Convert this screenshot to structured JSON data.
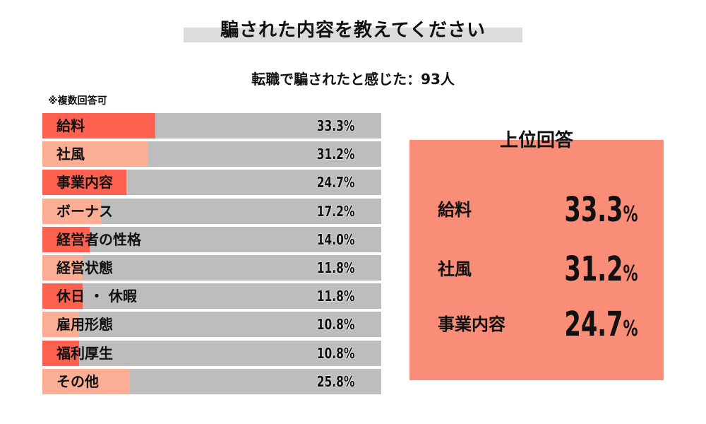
{
  "header": {
    "title": "騙された内容を教えてください",
    "subtitle": "転職で騙されたと感じた：93人",
    "note": "※複数回答可"
  },
  "colors": {
    "accent_dark": "#ff6150",
    "accent_light": "#fcae94",
    "track": "#bdbdbd",
    "panel": "#f98d78",
    "title_bar": "#dcdcdc"
  },
  "chart_data": {
    "type": "bar",
    "orientation": "horizontal",
    "unit": "%",
    "xlim": [
      0,
      100
    ],
    "categories": [
      "給料",
      "社風",
      "事業内容",
      "ボーナス",
      "経営者の性格",
      "経営状態",
      "休日・休暇",
      "雇用形態",
      "福利厚生",
      "その他"
    ],
    "values": [
      33.3,
      31.2,
      24.7,
      17.2,
      14.0,
      11.8,
      11.8,
      10.8,
      10.8,
      25.8
    ],
    "value_labels": [
      "33.3%",
      "31.2%",
      "24.7%",
      "17.2%",
      "14.0%",
      "11.8%",
      "11.8%",
      "10.8%",
      "10.8%",
      "25.8%"
    ],
    "category_labels": [
      "給料",
      "社風",
      "事業内容",
      "ボーナス",
      "経営者の性格",
      "経営状態",
      "休日 ・ 休暇",
      "雇用形態",
      "福利厚生",
      "その他"
    ]
  },
  "top_answers": {
    "title": "上位回答",
    "items": [
      {
        "label": "給料",
        "value": "33.3",
        "unit": "%"
      },
      {
        "label": "社風",
        "value": "31.2",
        "unit": "%"
      },
      {
        "label": "事業内容",
        "value": "24.7",
        "unit": "%"
      }
    ]
  }
}
